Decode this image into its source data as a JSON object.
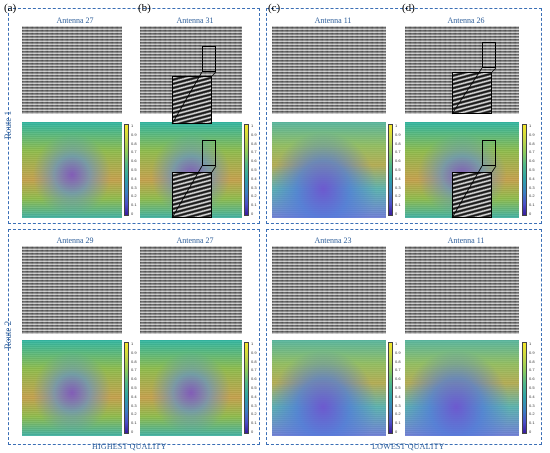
{
  "letters": [
    "(a)",
    "(b)",
    "(c)",
    "(d)"
  ],
  "routes": [
    "Route 1",
    "Route 2"
  ],
  "footer": {
    "left": "HIGHEST QUALITY",
    "right": "LOWEST QUALITY"
  },
  "captions": {
    "r1": [
      "Antenna 27",
      "Antenna 31",
      "Antenna 11",
      "Antenna 26"
    ],
    "r2": [
      "Antenna 29",
      "Antenna 27",
      "Antenna 23",
      "Antenna 11"
    ]
  },
  "colorbar_ticks": [
    "1",
    "0.9",
    "0.8",
    "0.7",
    "0.6",
    "0.5",
    "0.4",
    "0.3",
    "0.2",
    "0.1",
    "0"
  ],
  "colors": {
    "frame": "#3b6fb6",
    "caption": "#2f5f9a"
  }
}
